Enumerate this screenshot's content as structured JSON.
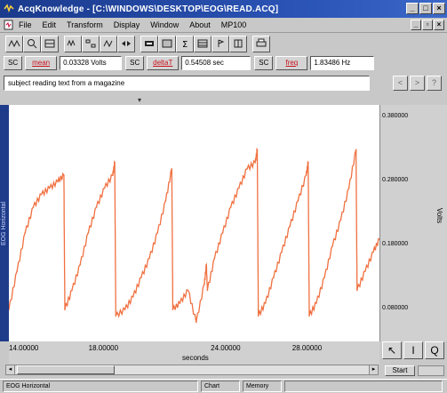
{
  "window": {
    "title": "AcqKnowledge - [C:\\WINDOWS\\DESKTOP\\EOG\\READ.ACQ]"
  },
  "menu": {
    "items": [
      "File",
      "Edit",
      "Transform",
      "Display",
      "Window",
      "About",
      "MP100"
    ]
  },
  "toolbar": {
    "icons": [
      "overlap-icon",
      "zoom-icon",
      "measure-icon",
      "waveform-icon",
      "tile-icon",
      "arrange-icon",
      "autoscale-icon",
      "overlay-icon",
      "grid-icon",
      "sum-icon",
      "table-icon",
      "marker-icon",
      "stats-icon",
      "print-icon"
    ]
  },
  "measurements": {
    "sc_label": "SC",
    "fields": [
      {
        "fn": "mean",
        "value": "0.03328 Volts"
      },
      {
        "fn": "deltaT",
        "value": "0.54508 sec"
      },
      {
        "fn": "freq",
        "value": "1.83486 Hz"
      }
    ]
  },
  "notes": {
    "text": "subject reading text from a magazine"
  },
  "channel": {
    "label": "EOG Horizontal",
    "y_unit": "Volts"
  },
  "chart_data": {
    "type": "line",
    "xlabel": "seconds",
    "ylabel": "Volts",
    "xlim": [
      13.3,
      31.5
    ],
    "ylim": [
      0.03,
      0.4
    ],
    "x_ticks": [
      "14.00000",
      "18.00000",
      "24.00000",
      "28.00000"
    ],
    "y_ticks": [
      "0.380000",
      "0.280000",
      "0.180000",
      "0.080000"
    ],
    "series": [
      {
        "color": "#f07040",
        "x": [
          13.3,
          13.7,
          14.1,
          14.5,
          14.9,
          15.3,
          15.7,
          16.0,
          16.05,
          16.4,
          16.8,
          17.2,
          17.6,
          18.0,
          18.4,
          18.5,
          18.55,
          19.0,
          19.4,
          19.8,
          20.2,
          20.6,
          21.0,
          21.3,
          21.35,
          21.7,
          22.1,
          22.5,
          22.9,
          23.0,
          23.05,
          23.4,
          23.8,
          24.2,
          24.6,
          25.0,
          25.4,
          25.5,
          25.55,
          25.9,
          26.3,
          26.7,
          27.1,
          27.5,
          27.9,
          28.0,
          28.05,
          28.4,
          28.8,
          29.2,
          29.6,
          30.0,
          30.35,
          30.4,
          30.8,
          31.2,
          31.5
        ],
        "values": [
          0.08,
          0.14,
          0.2,
          0.24,
          0.26,
          0.27,
          0.28,
          0.29,
          0.08,
          0.11,
          0.15,
          0.2,
          0.24,
          0.27,
          0.29,
          0.31,
          0.07,
          0.08,
          0.1,
          0.13,
          0.16,
          0.2,
          0.25,
          0.3,
          0.08,
          0.09,
          0.11,
          0.06,
          0.12,
          0.15,
          0.11,
          0.16,
          0.2,
          0.24,
          0.27,
          0.3,
          0.31,
          0.33,
          0.07,
          0.09,
          0.13,
          0.17,
          0.21,
          0.25,
          0.29,
          0.31,
          0.07,
          0.09,
          0.13,
          0.18,
          0.22,
          0.27,
          0.33,
          0.11,
          0.14,
          0.17,
          0.19
        ]
      }
    ]
  },
  "bottom": {
    "start_label": "Start"
  },
  "status": {
    "channel": "EOG Horizontal",
    "mode": "Chart",
    "storage": "Memory"
  }
}
